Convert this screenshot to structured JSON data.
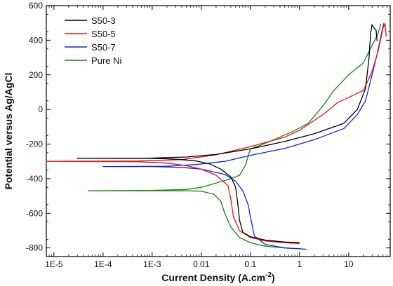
{
  "chart_data": {
    "type": "line",
    "title": "",
    "xlabel": "Current Density (A.cm",
    "xlabel_sup": "-2",
    "xlabel_end": ")",
    "ylabel": "Potential versus Ag/AgCl",
    "xscale": "log",
    "xlim": [
      7e-06,
      70
    ],
    "ylim": [
      -850,
      600
    ],
    "x_ticks": [
      1e-05,
      0.0001,
      0.001,
      0.01,
      0.1,
      1,
      10
    ],
    "x_tick_labels": [
      "1E-5",
      "1E-4",
      "1E-3",
      "0.01",
      "0.1",
      "1",
      "10"
    ],
    "y_ticks": [
      -800,
      -600,
      -400,
      -200,
      0,
      200,
      400,
      600
    ],
    "y_tick_labels": [
      "-800",
      "-600",
      "-400",
      "-200",
      "0",
      "200",
      "400",
      "600"
    ],
    "grid": false,
    "legend_position": "top-left",
    "series": [
      {
        "name": "S50-3",
        "color": "#000000",
        "points": [
          [
            1.0,
            -770
          ],
          [
            0.5,
            -766
          ],
          [
            0.2,
            -755
          ],
          [
            0.1,
            -735
          ],
          [
            0.07,
            -710
          ],
          [
            0.06,
            -640
          ],
          [
            0.055,
            -540
          ],
          [
            0.05,
            -450
          ],
          [
            0.04,
            -390
          ],
          [
            0.025,
            -345
          ],
          [
            0.015,
            -315
          ],
          [
            0.008,
            -298
          ],
          [
            0.004,
            -290
          ],
          [
            0.002,
            -285
          ],
          [
            0.0007,
            -282
          ],
          [
            3e-05,
            -282
          ],
          [
            3e-05,
            -282
          ],
          [
            0.001,
            -281
          ],
          [
            0.005,
            -275
          ],
          [
            0.02,
            -260
          ],
          [
            0.1,
            -228
          ],
          [
            0.5,
            -185
          ],
          [
            2,
            -140
          ],
          [
            8,
            -80
          ],
          [
            15,
            0
          ],
          [
            22,
            120
          ],
          [
            26,
            300
          ],
          [
            28,
            440
          ],
          [
            30,
            490
          ],
          [
            33,
            470
          ],
          [
            36,
            460
          ],
          [
            38,
            395
          ]
        ]
      },
      {
        "name": "S50-5",
        "color": "#ee1111",
        "points": [
          [
            1.0,
            -775
          ],
          [
            0.5,
            -770
          ],
          [
            0.2,
            -760
          ],
          [
            0.1,
            -740
          ],
          [
            0.06,
            -700
          ],
          [
            0.045,
            -620
          ],
          [
            0.04,
            -520
          ],
          [
            0.035,
            -440
          ],
          [
            0.02,
            -380
          ],
          [
            0.01,
            -345
          ],
          [
            0.005,
            -325
          ],
          [
            0.002,
            -310
          ],
          [
            0.0005,
            -302
          ],
          [
            7e-06,
            -300
          ],
          [
            7e-06,
            -300
          ],
          [
            0.0005,
            -298
          ],
          [
            0.004,
            -290
          ],
          [
            0.02,
            -262
          ],
          [
            0.1,
            -215
          ],
          [
            0.5,
            -160
          ],
          [
            1,
            -120
          ],
          [
            3,
            -30
          ],
          [
            6,
            40
          ],
          [
            10,
            70
          ],
          [
            20,
            110
          ],
          [
            30,
            220
          ],
          [
            40,
            340
          ],
          [
            50,
            470
          ],
          [
            55,
            495
          ],
          [
            58,
            420
          ]
        ]
      },
      {
        "name": "S50-7",
        "color": "#1122dd",
        "points": [
          [
            1.4,
            -808
          ],
          [
            1.0,
            -805
          ],
          [
            0.5,
            -800
          ],
          [
            0.2,
            -780
          ],
          [
            0.12,
            -730
          ],
          [
            0.1,
            -620
          ],
          [
            0.09,
            -550
          ],
          [
            0.07,
            -470
          ],
          [
            0.05,
            -415
          ],
          [
            0.03,
            -375
          ],
          [
            0.01,
            -345
          ],
          [
            0.004,
            -335
          ],
          [
            0.001,
            -330
          ],
          [
            0.0001,
            -330
          ],
          [
            0.0001,
            -330
          ],
          [
            0.002,
            -328
          ],
          [
            0.008,
            -318
          ],
          [
            0.03,
            -300
          ],
          [
            0.1,
            -265
          ],
          [
            0.5,
            -225
          ],
          [
            2,
            -175
          ],
          [
            8,
            -110
          ],
          [
            15,
            -30
          ],
          [
            22,
            50
          ],
          [
            30,
            200
          ],
          [
            38,
            320
          ],
          [
            45,
            420
          ],
          [
            50,
            480
          ],
          [
            52,
            498
          ]
        ]
      },
      {
        "name": "Pure Ni",
        "color": "#118811",
        "points": [
          [
            1.3,
            -808
          ],
          [
            1.0,
            -805
          ],
          [
            0.5,
            -800
          ],
          [
            0.2,
            -790
          ],
          [
            0.1,
            -770
          ],
          [
            0.06,
            -740
          ],
          [
            0.04,
            -680
          ],
          [
            0.03,
            -600
          ],
          [
            0.025,
            -530
          ],
          [
            0.018,
            -490
          ],
          [
            0.01,
            -472
          ],
          [
            0.005,
            -470
          ],
          [
            0.001,
            -470
          ],
          [
            0.0002,
            -470
          ],
          [
            5e-05,
            -470
          ],
          [
            5e-05,
            -470
          ],
          [
            0.001,
            -468
          ],
          [
            0.005,
            -462
          ],
          [
            0.01,
            -450
          ],
          [
            0.02,
            -425
          ],
          [
            0.04,
            -400
          ],
          [
            0.06,
            -380
          ],
          [
            0.08,
            -320
          ],
          [
            0.09,
            -270
          ],
          [
            0.1,
            -228
          ],
          [
            0.15,
            -210
          ],
          [
            0.3,
            -175
          ],
          [
            0.7,
            -130
          ],
          [
            1.5,
            -80
          ],
          [
            3,
            20
          ],
          [
            5,
            110
          ],
          [
            10,
            200
          ],
          [
            20,
            270
          ],
          [
            30,
            370
          ],
          [
            40,
            440
          ],
          [
            45,
            495
          ]
        ]
      }
    ]
  }
}
